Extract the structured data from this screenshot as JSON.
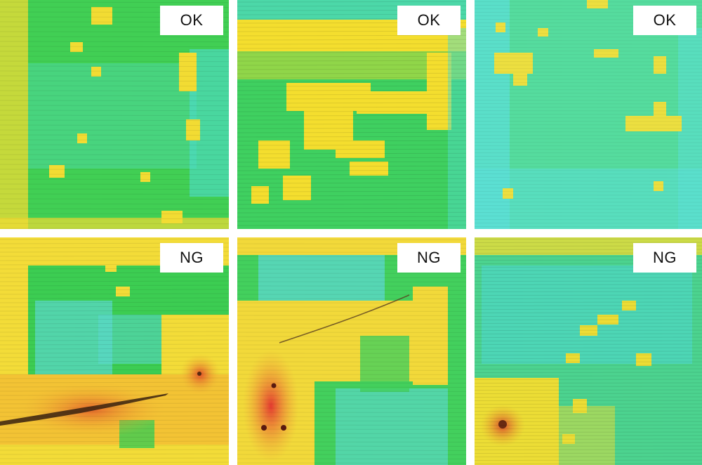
{
  "panels": [
    {
      "label": "OK",
      "palette": {
        "base": "#41cf54",
        "cool": "#4fdcd2",
        "warm": "#f2dc33"
      }
    },
    {
      "label": "OK",
      "palette": {
        "base": "#3fd060",
        "cool": "#52dcc8",
        "warm": "#f4de2e"
      }
    },
    {
      "label": "OK",
      "palette": {
        "base": "#55dc9e",
        "cool": "#5ce0dc",
        "warm": "#ecdf40"
      }
    },
    {
      "label": "NG",
      "palette": {
        "base": "#3ccd52",
        "cool": "#5bd9cf",
        "warm": "#f3c334",
        "hot": "#e2502a"
      }
    },
    {
      "label": "NG",
      "palette": {
        "base": "#43d05d",
        "cool": "#5cd8d0",
        "warm": "#f2d93a",
        "hot": "#e43a30"
      }
    },
    {
      "label": "NG",
      "palette": {
        "base": "#4cd38f",
        "cool": "#4fd9cf",
        "warm": "#ecdd35",
        "hot": "#d94b2b"
      }
    }
  ]
}
